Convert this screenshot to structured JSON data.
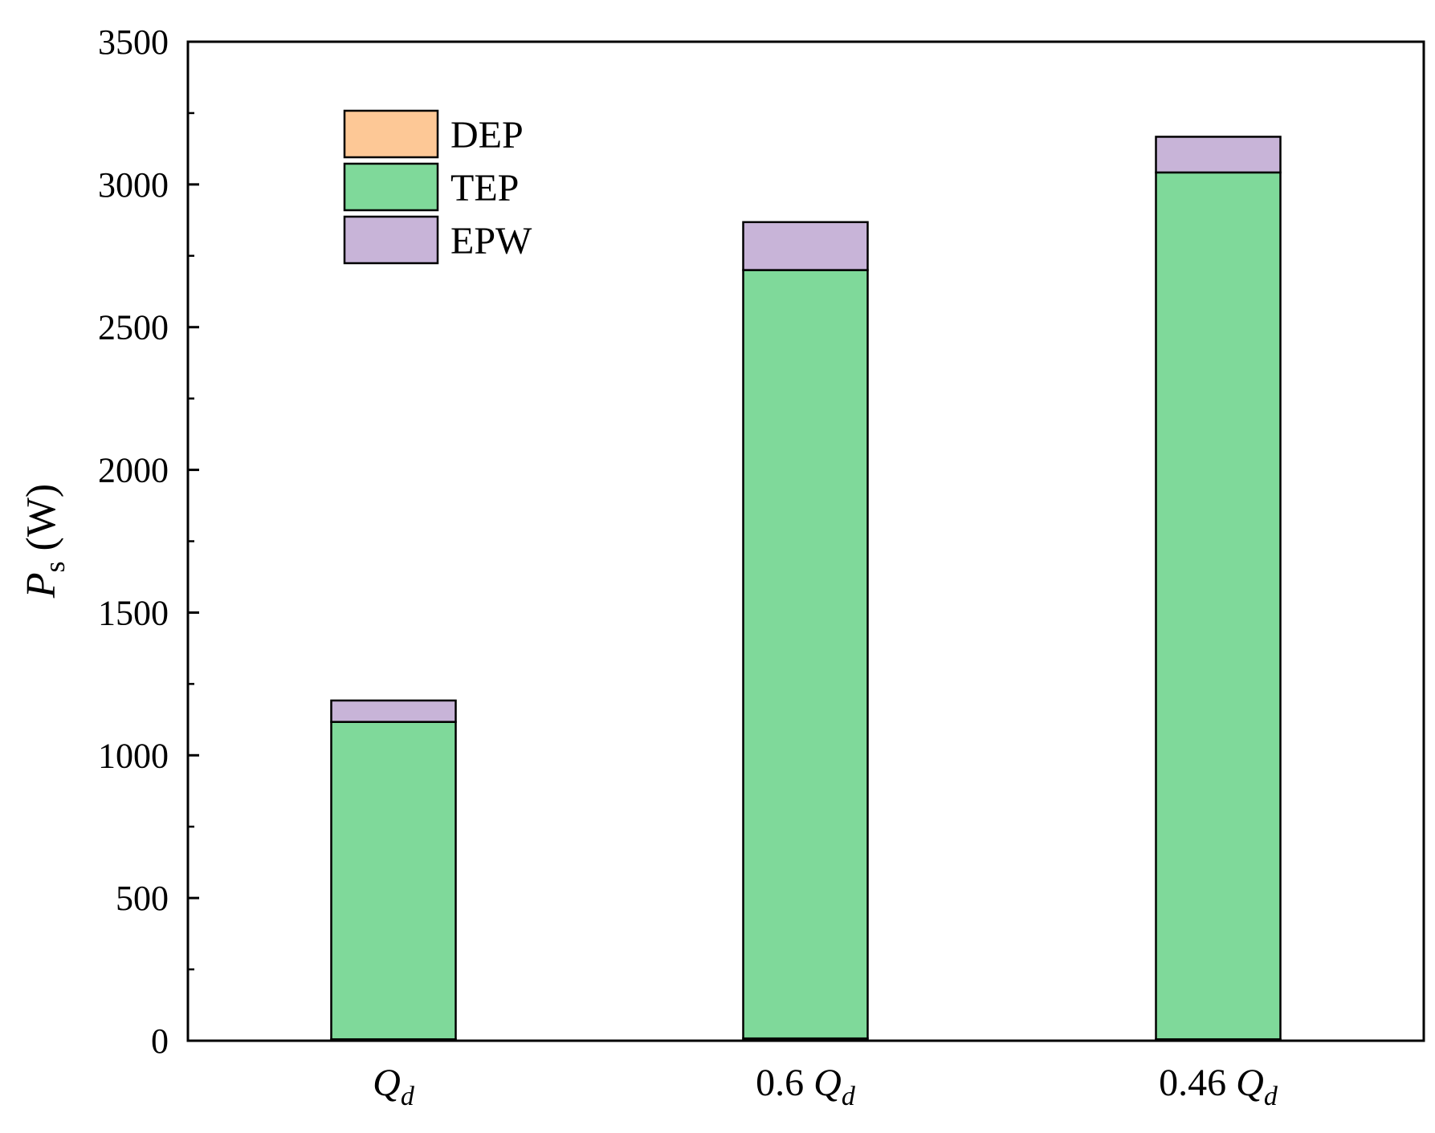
{
  "chart_data": {
    "type": "bar",
    "stacked": true,
    "categories": [
      {
        "main": "Q",
        "sub": "d",
        "prefix": ""
      },
      {
        "main": "Q",
        "sub": "d",
        "prefix": "0.6 "
      },
      {
        "main": "Q",
        "sub": "d",
        "prefix": "0.46 "
      }
    ],
    "series": [
      {
        "name": "DEP",
        "color": "#fdc896",
        "values": [
          5,
          8,
          5
        ]
      },
      {
        "name": "TEP",
        "color": "#7fd99a",
        "values": [
          1112,
          2692,
          3037
        ]
      },
      {
        "name": "EPW",
        "color": "#c8b4d8",
        "values": [
          75,
          168,
          125
        ]
      }
    ],
    "ylabel": {
      "main": "P",
      "sub": "s",
      "unit": "(W)"
    },
    "ylim": [
      0,
      3500
    ],
    "yticks": [
      "0",
      "500",
      "1000",
      "1500",
      "2000",
      "2500",
      "3000",
      "3500"
    ],
    "ytick_values": [
      0,
      500,
      1000,
      1500,
      2000,
      2500,
      3000,
      3500
    ],
    "minor_tick_step": 250,
    "grid": false,
    "legend_position": "top-left"
  }
}
